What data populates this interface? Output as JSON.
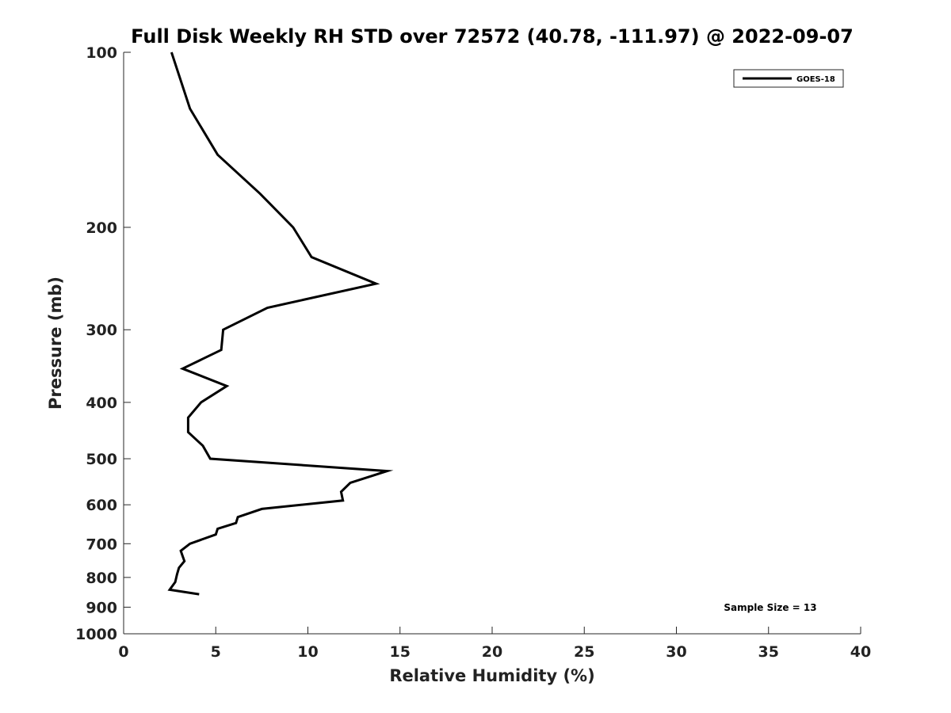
{
  "chart_data": {
    "type": "line",
    "title": "Full Disk Weekly RH STD over 72572 (40.78, -111.97) @ 2022-09-07",
    "xlabel": "Relative Humidity (%)",
    "ylabel": "Pressure (mb)",
    "xlim": [
      0,
      40
    ],
    "ylim": [
      100,
      1000
    ],
    "y_scale": "log",
    "y_reversed": true,
    "x_ticks": [
      0,
      5,
      10,
      15,
      20,
      25,
      30,
      35,
      40
    ],
    "y_ticks": [
      100,
      200,
      300,
      400,
      500,
      600,
      700,
      800,
      900,
      1000
    ],
    "grid": false,
    "legend_position": "top-right",
    "series": [
      {
        "name": "GOES-18",
        "color": "#000000",
        "points": [
          [
            2.6,
            100
          ],
          [
            3.6,
            125
          ],
          [
            5.1,
            150
          ],
          [
            7.4,
            175
          ],
          [
            9.2,
            200
          ],
          [
            10.2,
            225
          ],
          [
            13.7,
            250
          ],
          [
            7.8,
            275
          ],
          [
            5.4,
            300
          ],
          [
            5.3,
            325
          ],
          [
            3.2,
            350
          ],
          [
            5.6,
            375
          ],
          [
            4.2,
            400
          ],
          [
            3.5,
            425
          ],
          [
            3.5,
            450
          ],
          [
            4.3,
            475
          ],
          [
            4.7,
            500
          ],
          [
            14.3,
            525
          ],
          [
            12.3,
            550
          ],
          [
            11.8,
            570
          ],
          [
            11.9,
            590
          ],
          [
            7.5,
            610
          ],
          [
            6.2,
            630
          ],
          [
            6.1,
            645
          ],
          [
            5.1,
            660
          ],
          [
            5.0,
            675
          ],
          [
            3.6,
            700
          ],
          [
            3.1,
            720
          ],
          [
            3.2,
            735
          ],
          [
            3.3,
            750
          ],
          [
            3.0,
            770
          ],
          [
            2.9,
            790
          ],
          [
            2.8,
            815
          ],
          [
            2.5,
            840
          ],
          [
            4.1,
            855
          ]
        ]
      }
    ],
    "annotations": [
      "Sample Size = 13"
    ]
  }
}
